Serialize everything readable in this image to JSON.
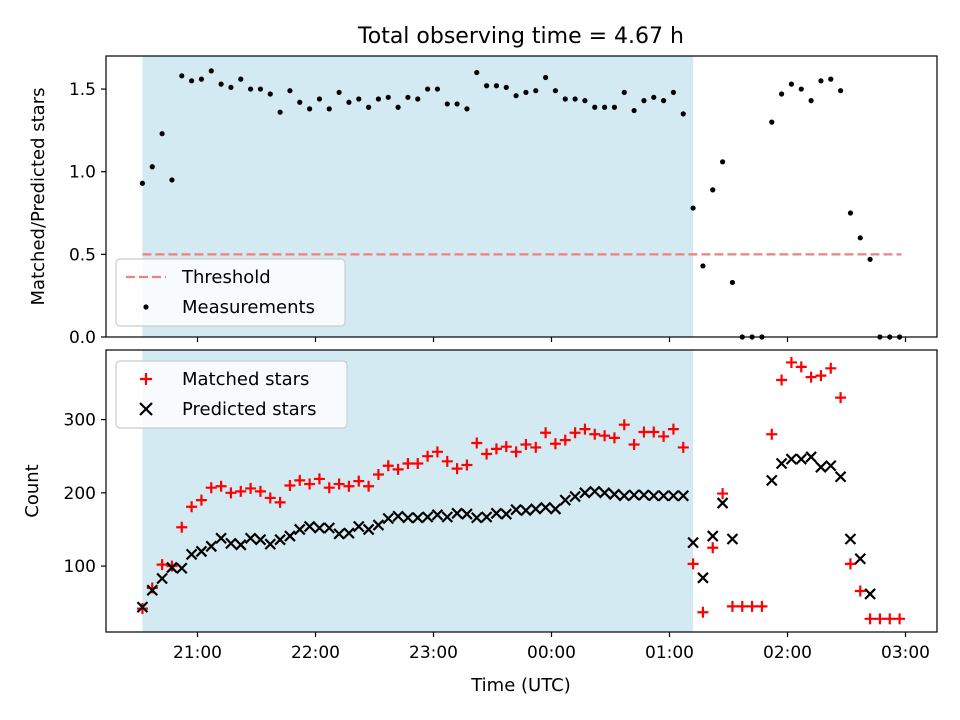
{
  "title": "Total observing time = 4.67 h",
  "xlabel": "Time (UTC)",
  "x_ticks": [
    "21:00",
    "22:00",
    "23:00",
    "00:00",
    "01:00",
    "02:00",
    "03:00"
  ],
  "colors": {
    "span": "#add8e6",
    "threshold": "#f08080",
    "matched": "#ff0000",
    "predicted": "#000000",
    "measurement": "#000000"
  },
  "chart_data": [
    {
      "type": "scatter",
      "ylabel": "Matched/Predicted stars",
      "ylim": [
        0,
        1.7
      ],
      "yticks": [
        "0.0",
        "0.5",
        "1.0",
        "1.5"
      ],
      "legend_position": "lower-left",
      "shaded_interval": [
        "20:32",
        "01:12"
      ],
      "threshold": {
        "name": "Threshold",
        "value": 0.5,
        "x_range": [
          "20:32",
          "02:58"
        ]
      },
      "series": [
        {
          "name": "Measurements",
          "points": [
            [
              "20:32",
              0.93
            ],
            [
              "20:37",
              1.03
            ],
            [
              "20:42",
              1.23
            ],
            [
              "20:47",
              0.95
            ],
            [
              "20:52",
              1.58
            ],
            [
              "20:57",
              1.55
            ],
            [
              "21:02",
              1.56
            ],
            [
              "21:07",
              1.61
            ],
            [
              "21:12",
              1.53
            ],
            [
              "21:17",
              1.51
            ],
            [
              "21:22",
              1.56
            ],
            [
              "21:27",
              1.5
            ],
            [
              "21:32",
              1.5
            ],
            [
              "21:37",
              1.47
            ],
            [
              "21:42",
              1.36
            ],
            [
              "21:47",
              1.49
            ],
            [
              "21:52",
              1.42
            ],
            [
              "21:57",
              1.38
            ],
            [
              "22:02",
              1.44
            ],
            [
              "22:07",
              1.38
            ],
            [
              "22:12",
              1.48
            ],
            [
              "22:17",
              1.42
            ],
            [
              "22:22",
              1.44
            ],
            [
              "22:27",
              1.39
            ],
            [
              "22:32",
              1.44
            ],
            [
              "22:37",
              1.45
            ],
            [
              "22:42",
              1.39
            ],
            [
              "22:47",
              1.45
            ],
            [
              "22:52",
              1.44
            ],
            [
              "22:57",
              1.5
            ],
            [
              "23:02",
              1.5
            ],
            [
              "23:07",
              1.41
            ],
            [
              "23:12",
              1.41
            ],
            [
              "23:17",
              1.38
            ],
            [
              "23:22",
              1.6
            ],
            [
              "23:27",
              1.52
            ],
            [
              "23:32",
              1.52
            ],
            [
              "23:37",
              1.51
            ],
            [
              "23:42",
              1.46
            ],
            [
              "23:47",
              1.48
            ],
            [
              "23:52",
              1.49
            ],
            [
              "23:57",
              1.57
            ],
            [
              "00:02",
              1.49
            ],
            [
              "00:07",
              1.44
            ],
            [
              "00:12",
              1.44
            ],
            [
              "00:17",
              1.43
            ],
            [
              "00:22",
              1.39
            ],
            [
              "00:27",
              1.39
            ],
            [
              "00:32",
              1.39
            ],
            [
              "00:37",
              1.48
            ],
            [
              "00:42",
              1.37
            ],
            [
              "00:47",
              1.43
            ],
            [
              "00:52",
              1.45
            ],
            [
              "00:57",
              1.43
            ],
            [
              "01:02",
              1.48
            ],
            [
              "01:07",
              1.35
            ],
            [
              "01:12",
              0.78
            ],
            [
              "01:17",
              0.43
            ],
            [
              "01:22",
              0.89
            ],
            [
              "01:27",
              1.06
            ],
            [
              "01:32",
              0.33
            ],
            [
              "01:37",
              0.0
            ],
            [
              "01:42",
              0.0
            ],
            [
              "01:47",
              0.0
            ],
            [
              "01:52",
              1.3
            ],
            [
              "01:57",
              1.47
            ],
            [
              "02:02",
              1.53
            ],
            [
              "02:07",
              1.5
            ],
            [
              "02:12",
              1.43
            ],
            [
              "02:17",
              1.55
            ],
            [
              "02:22",
              1.56
            ],
            [
              "02:27",
              1.49
            ],
            [
              "02:32",
              0.75
            ],
            [
              "02:37",
              0.6
            ],
            [
              "02:42",
              0.47
            ],
            [
              "02:47",
              0.0
            ],
            [
              "02:52",
              0.0
            ],
            [
              "02:57",
              0.0
            ]
          ]
        }
      ]
    },
    {
      "type": "scatter",
      "ylabel": "Count",
      "ylim": [
        10,
        395
      ],
      "yticks": [
        "100",
        "200",
        "300"
      ],
      "legend_position": "upper-left",
      "shaded_interval": [
        "20:32",
        "01:12"
      ],
      "series": [
        {
          "name": "Matched stars",
          "marker": "plus",
          "points": [
            [
              "20:32",
              42
            ],
            [
              "20:37",
              70
            ],
            [
              "20:42",
              102
            ],
            [
              "20:47",
              100
            ],
            [
              "20:52",
              153
            ],
            [
              "20:57",
              181
            ],
            [
              "21:02",
              190
            ],
            [
              "21:07",
              207
            ],
            [
              "21:12",
              209
            ],
            [
              "21:17",
              200
            ],
            [
              "21:22",
              202
            ],
            [
              "21:27",
              206
            ],
            [
              "21:32",
              202
            ],
            [
              "21:37",
              193
            ],
            [
              "21:42",
              187
            ],
            [
              "21:47",
              210
            ],
            [
              "21:52",
              217
            ],
            [
              "21:57",
              212
            ],
            [
              "22:02",
              219
            ],
            [
              "22:07",
              207
            ],
            [
              "22:12",
              212
            ],
            [
              "22:17",
              209
            ],
            [
              "22:22",
              216
            ],
            [
              "22:27",
              209
            ],
            [
              "22:32",
              225
            ],
            [
              "22:37",
              237
            ],
            [
              "22:42",
              232
            ],
            [
              "22:47",
              240
            ],
            [
              "22:52",
              240
            ],
            [
              "22:57",
              250
            ],
            [
              "23:02",
              256
            ],
            [
              "23:07",
              243
            ],
            [
              "23:12",
              233
            ],
            [
              "23:17",
              238
            ],
            [
              "23:22",
              268
            ],
            [
              "23:27",
              253
            ],
            [
              "23:32",
              260
            ],
            [
              "23:37",
              263
            ],
            [
              "23:42",
              256
            ],
            [
              "23:47",
              266
            ],
            [
              "23:52",
              262
            ],
            [
              "23:57",
              282
            ],
            [
              "00:02",
              267
            ],
            [
              "00:07",
              272
            ],
            [
              "00:12",
              282
            ],
            [
              "00:17",
              287
            ],
            [
              "00:22",
              280
            ],
            [
              "00:27",
              278
            ],
            [
              "00:32",
              275
            ],
            [
              "00:37",
              293
            ],
            [
              "00:42",
              266
            ],
            [
              "00:47",
              283
            ],
            [
              "00:52",
              283
            ],
            [
              "00:57",
              277
            ],
            [
              "01:02",
              287
            ],
            [
              "01:07",
              262
            ],
            [
              "01:12",
              103
            ],
            [
              "01:17",
              37
            ],
            [
              "01:22",
              125
            ],
            [
              "01:27",
              199
            ],
            [
              "01:32",
              45
            ],
            [
              "01:37",
              45
            ],
            [
              "01:42",
              45
            ],
            [
              "01:47",
              45
            ],
            [
              "01:52",
              280
            ],
            [
              "01:57",
              354
            ],
            [
              "02:02",
              378
            ],
            [
              "02:07",
              372
            ],
            [
              "02:12",
              358
            ],
            [
              "02:17",
              360
            ],
            [
              "02:22",
              370
            ],
            [
              "02:27",
              330
            ],
            [
              "02:32",
              103
            ],
            [
              "02:37",
              66
            ],
            [
              "02:42",
              28
            ],
            [
              "02:47",
              28
            ],
            [
              "02:52",
              28
            ],
            [
              "02:57",
              28
            ]
          ]
        },
        {
          "name": "Predicted stars",
          "marker": "x",
          "points": [
            [
              "20:32",
              44
            ],
            [
              "20:37",
              67
            ],
            [
              "20:42",
              83
            ],
            [
              "20:47",
              98
            ],
            [
              "20:52",
              97
            ],
            [
              "20:57",
              116
            ],
            [
              "21:02",
              120
            ],
            [
              "21:07",
              127
            ],
            [
              "21:12",
              138
            ],
            [
              "21:17",
              131
            ],
            [
              "21:22",
              129
            ],
            [
              "21:27",
              138
            ],
            [
              "21:32",
              136
            ],
            [
              "21:37",
              130
            ],
            [
              "21:42",
              136
            ],
            [
              "21:47",
              141
            ],
            [
              "21:52",
              150
            ],
            [
              "21:57",
              154
            ],
            [
              "22:02",
              152
            ],
            [
              "22:07",
              152
            ],
            [
              "22:12",
              144
            ],
            [
              "22:17",
              145
            ],
            [
              "22:22",
              154
            ],
            [
              "22:27",
              150
            ],
            [
              "22:32",
              156
            ],
            [
              "22:37",
              165
            ],
            [
              "22:42",
              168
            ],
            [
              "22:47",
              166
            ],
            [
              "22:52",
              166
            ],
            [
              "22:57",
              167
            ],
            [
              "23:02",
              170
            ],
            [
              "23:07",
              167
            ],
            [
              "23:12",
              172
            ],
            [
              "23:17",
              171
            ],
            [
              "23:22",
              166
            ],
            [
              "23:27",
              167
            ],
            [
              "23:32",
              172
            ],
            [
              "23:37",
              171
            ],
            [
              "23:42",
              177
            ],
            [
              "23:47",
              176
            ],
            [
              "23:52",
              178
            ],
            [
              "23:57",
              180
            ],
            [
              "00:02",
              178
            ],
            [
              "00:07",
              190
            ],
            [
              "00:12",
              195
            ],
            [
              "00:17",
              200
            ],
            [
              "00:22",
              202
            ],
            [
              "00:27",
              200
            ],
            [
              "00:32",
              198
            ],
            [
              "00:37",
              196
            ],
            [
              "00:42",
              197
            ],
            [
              "00:47",
              197
            ],
            [
              "00:52",
              196
            ],
            [
              "00:57",
              196
            ],
            [
              "01:02",
              196
            ],
            [
              "01:07",
              196
            ],
            [
              "01:12",
              132
            ],
            [
              "01:17",
              84
            ],
            [
              "01:22",
              141
            ],
            [
              "01:27",
              186
            ],
            [
              "01:32",
              137
            ],
            [
              "01:52",
              217
            ],
            [
              "01:57",
              240
            ],
            [
              "02:02",
              246
            ],
            [
              "02:07",
              246
            ],
            [
              "02:12",
              249
            ],
            [
              "02:17",
              235
            ],
            [
              "02:22",
              237
            ],
            [
              "02:27",
              222
            ],
            [
              "02:32",
              137
            ],
            [
              "02:37",
              110
            ],
            [
              "02:42",
              62
            ]
          ]
        }
      ]
    }
  ]
}
